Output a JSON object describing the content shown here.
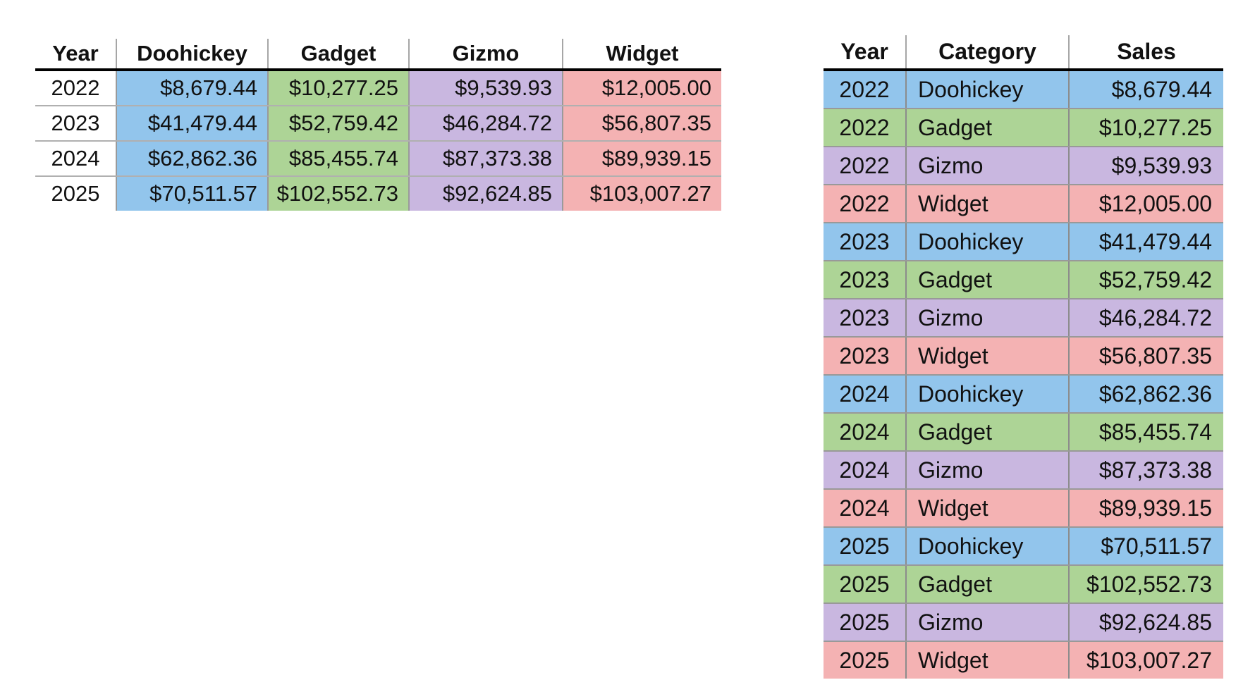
{
  "colors": {
    "doohickey": "#92C5EC",
    "gadget": "#ADD496",
    "gizmo": "#C9B7E0",
    "widget": "#F4B2B3"
  },
  "chart_data": [
    {
      "type": "table",
      "columns": [
        "Year",
        "Doohickey",
        "Gadget",
        "Gizmo",
        "Widget"
      ],
      "rows": [
        [
          "2022",
          "$8,679.44",
          "$10,277.25",
          "$9,539.93",
          "$12,005.00"
        ],
        [
          "2023",
          "$41,479.44",
          "$52,759.42",
          "$46,284.72",
          "$56,807.35"
        ],
        [
          "2024",
          "$62,862.36",
          "$85,455.74",
          "$87,373.38",
          "$89,939.15"
        ],
        [
          "2025",
          "$70,511.57",
          "$102,552.73",
          "$92,624.85",
          "$103,007.27"
        ]
      ]
    },
    {
      "type": "table",
      "columns": [
        "Year",
        "Category",
        "Sales"
      ],
      "rows": [
        [
          "2022",
          "Doohickey",
          "$8,679.44"
        ],
        [
          "2022",
          "Gadget",
          "$10,277.25"
        ],
        [
          "2022",
          "Gizmo",
          "$9,539.93"
        ],
        [
          "2022",
          "Widget",
          "$12,005.00"
        ],
        [
          "2023",
          "Doohickey",
          "$41,479.44"
        ],
        [
          "2023",
          "Gadget",
          "$52,759.42"
        ],
        [
          "2023",
          "Gizmo",
          "$46,284.72"
        ],
        [
          "2023",
          "Widget",
          "$56,807.35"
        ],
        [
          "2024",
          "Doohickey",
          "$62,862.36"
        ],
        [
          "2024",
          "Gadget",
          "$85,455.74"
        ],
        [
          "2024",
          "Gizmo",
          "$87,373.38"
        ],
        [
          "2024",
          "Widget",
          "$89,939.15"
        ],
        [
          "2025",
          "Doohickey",
          "$70,511.57"
        ],
        [
          "2025",
          "Gadget",
          "$102,552.73"
        ],
        [
          "2025",
          "Gizmo",
          "$92,624.85"
        ],
        [
          "2025",
          "Widget",
          "$103,007.27"
        ]
      ]
    }
  ]
}
